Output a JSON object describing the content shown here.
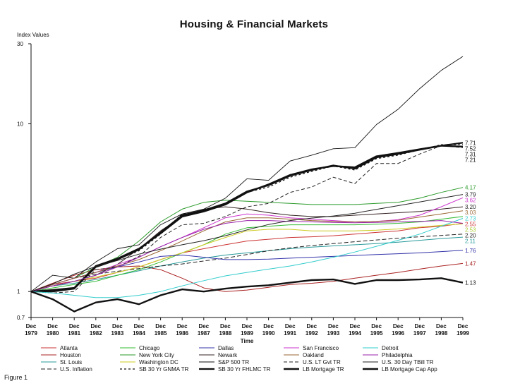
{
  "chart_data": {
    "type": "line",
    "title": "Housing & Financial Markets",
    "ylabel": "Index Values",
    "xlabel": "Time",
    "yscale": "log",
    "ylim": [
      0.7,
      30
    ],
    "yticks": [
      {
        "value": 30,
        "label": "30"
      },
      {
        "value": 10,
        "label": "10"
      },
      {
        "value": 1,
        "label": "1"
      },
      {
        "value": 0.7,
        "label": "0.7"
      }
    ],
    "xlim": [
      1979,
      1999
    ],
    "xticks": [
      {
        "year": 1979,
        "top": "Dec",
        "bottom": "1979"
      },
      {
        "year": 1980,
        "top": "Dec",
        "bottom": "1980"
      },
      {
        "year": 1981,
        "top": "Dec",
        "bottom": "1981"
      },
      {
        "year": 1982,
        "top": "Dec",
        "bottom": "1982"
      },
      {
        "year": 1983,
        "top": "Dec",
        "bottom": "1983"
      },
      {
        "year": 1984,
        "top": "Dec",
        "bottom": "1984"
      },
      {
        "year": 1985,
        "top": "Dec",
        "bottom": "1985"
      },
      {
        "year": 1986,
        "top": "Dec",
        "bottom": "1986"
      },
      {
        "year": 1987,
        "top": "Dec",
        "bottom": "1987"
      },
      {
        "year": 1988,
        "top": "Dec",
        "bottom": "1988"
      },
      {
        "year": 1989,
        "top": "Dec",
        "bottom": "1989"
      },
      {
        "year": 1990,
        "top": "Dec",
        "bottom": "1990"
      },
      {
        "year": 1991,
        "top": "Dec",
        "bottom": "1991"
      },
      {
        "year": 1992,
        "top": "Dec",
        "bottom": "1992"
      },
      {
        "year": 1993,
        "top": "Dec",
        "bottom": "1993"
      },
      {
        "year": 1994,
        "top": "Dec",
        "bottom": "1994"
      },
      {
        "year": 1995,
        "top": "Dec",
        "bottom": "1995"
      },
      {
        "year": 1996,
        "top": "Dec",
        "bottom": "1996"
      },
      {
        "year": 1997,
        "top": "Dec",
        "bottom": "1997"
      },
      {
        "year": 1998,
        "top": "Dec",
        "bottom": "1998"
      },
      {
        "year": 1999,
        "top": "Dec",
        "bottom": "1999"
      }
    ],
    "end_labels": [
      {
        "text": "7.71",
        "value": 7.71,
        "color": "#111111"
      },
      {
        "text": "7.52",
        "value": 7.52,
        "color": "#111111"
      },
      {
        "text": "7.31",
        "value": 7.31,
        "color": "#111111"
      },
      {
        "text": "7.21",
        "value": 7.21,
        "color": "#111111"
      },
      {
        "text": "4.17",
        "value": 4.17,
        "color": "#2a9a2a"
      },
      {
        "text": "3.79",
        "value": 3.79,
        "color": "#222222"
      },
      {
        "text": "3.62",
        "value": 3.62,
        "color": "#cc33cc"
      },
      {
        "text": "3.20",
        "value": 3.2,
        "color": "#222222"
      },
      {
        "text": "3.03",
        "value": 3.03,
        "color": "#996633"
      },
      {
        "text": "2.73",
        "value": 2.73,
        "color": "#33cccc"
      },
      {
        "text": "2.55",
        "value": 2.55,
        "color": "#cc3333"
      },
      {
        "text": "2.53",
        "value": 2.53,
        "color": "#aacc33"
      },
      {
        "text": "2.20",
        "value": 2.2,
        "color": "#222222"
      },
      {
        "text": "2.11",
        "value": 2.11,
        "color": "#2a9a9a"
      },
      {
        "text": "1.76",
        "value": 1.76,
        "color": "#3333aa"
      },
      {
        "text": "1.47",
        "value": 1.47,
        "color": "#aa2222"
      },
      {
        "text": "1.13",
        "value": 1.13,
        "color": "#111111"
      }
    ],
    "series": [
      {
        "name": "Atlanta",
        "color": "#cc3333",
        "width": 1,
        "dash": "",
        "values": [
          1.0,
          1.1,
          1.15,
          1.2,
          1.3,
          1.4,
          1.55,
          1.7,
          1.8,
          1.9,
          2.0,
          2.05,
          2.1,
          2.12,
          2.15,
          2.2,
          2.25,
          2.3,
          2.4,
          2.45,
          2.55
        ]
      },
      {
        "name": "Houston",
        "color": "#aa2222",
        "width": 1,
        "dash": "",
        "values": [
          1.0,
          1.12,
          1.25,
          1.35,
          1.4,
          1.42,
          1.35,
          1.2,
          1.05,
          1.0,
          1.02,
          1.06,
          1.1,
          1.12,
          1.15,
          1.2,
          1.25,
          1.3,
          1.36,
          1.42,
          1.47
        ]
      },
      {
        "name": "St. Louis",
        "color": "#2a9a9a",
        "width": 1,
        "dash": "",
        "values": [
          1.0,
          1.08,
          1.12,
          1.18,
          1.25,
          1.33,
          1.42,
          1.5,
          1.58,
          1.65,
          1.7,
          1.75,
          1.8,
          1.84,
          1.87,
          1.9,
          1.93,
          1.97,
          2.02,
          2.07,
          2.11
        ]
      },
      {
        "name": "U.S. Inflation",
        "color": "#222222",
        "width": 1,
        "dash": "6,3",
        "values": [
          1.0,
          1.1,
          1.2,
          1.27,
          1.32,
          1.37,
          1.42,
          1.46,
          1.52,
          1.58,
          1.66,
          1.75,
          1.82,
          1.88,
          1.93,
          1.98,
          2.03,
          2.08,
          2.12,
          2.16,
          2.2
        ]
      },
      {
        "name": "Chicago",
        "color": "#33bb33",
        "width": 1,
        "dash": "",
        "values": [
          1.0,
          1.05,
          1.1,
          1.15,
          1.25,
          1.35,
          1.5,
          1.7,
          1.9,
          2.2,
          2.4,
          2.45,
          2.5,
          2.5,
          2.5,
          2.5,
          2.52,
          2.55,
          2.6,
          2.7,
          2.8
        ]
      },
      {
        "name": "New York City",
        "color": "#2a9a2a",
        "width": 1,
        "dash": "",
        "values": [
          1.0,
          1.1,
          1.2,
          1.4,
          1.6,
          2.0,
          2.6,
          3.1,
          3.4,
          3.5,
          3.45,
          3.4,
          3.35,
          3.3,
          3.3,
          3.3,
          3.35,
          3.4,
          3.6,
          3.9,
          4.17
        ]
      },
      {
        "name": "Washington DC",
        "color": "#cccc22",
        "width": 1,
        "dash": "",
        "values": [
          1.0,
          1.08,
          1.15,
          1.22,
          1.3,
          1.4,
          1.55,
          1.7,
          1.9,
          2.1,
          2.3,
          2.35,
          2.35,
          2.3,
          2.3,
          2.3,
          2.32,
          2.36,
          2.42,
          2.48,
          2.53
        ]
      },
      {
        "name": "SB 30 Yr GNMA TR",
        "color": "#111111",
        "width": 1.2,
        "dash": "3,3",
        "values": [
          1.0,
          1.0,
          1.05,
          1.4,
          1.55,
          1.75,
          2.2,
          2.9,
          3.0,
          3.3,
          3.9,
          4.2,
          4.8,
          5.2,
          5.6,
          5.3,
          6.2,
          6.5,
          7.0,
          7.5,
          7.52
        ]
      },
      {
        "name": "Dallas",
        "color": "#3333aa",
        "width": 1,
        "dash": "",
        "values": [
          1.0,
          1.1,
          1.2,
          1.3,
          1.4,
          1.5,
          1.62,
          1.65,
          1.6,
          1.55,
          1.55,
          1.56,
          1.58,
          1.6,
          1.62,
          1.64,
          1.66,
          1.68,
          1.7,
          1.73,
          1.76
        ]
      },
      {
        "name": "Newark",
        "color": "#332222",
        "width": 1,
        "dash": "",
        "values": [
          1.0,
          1.08,
          1.15,
          1.25,
          1.45,
          1.8,
          2.3,
          2.8,
          3.1,
          3.2,
          3.1,
          2.95,
          2.85,
          2.8,
          2.8,
          2.85,
          2.9,
          2.95,
          3.0,
          3.1,
          3.2
        ]
      },
      {
        "name": "S&P 500 TR",
        "color": "#111111",
        "width": 0.9,
        "dash": "",
        "values": [
          1.0,
          1.25,
          1.2,
          1.5,
          1.8,
          1.9,
          2.5,
          2.9,
          3.1,
          3.6,
          4.7,
          4.6,
          6.0,
          6.5,
          7.1,
          7.2,
          9.9,
          12.2,
          16.2,
          20.8,
          25.2
        ]
      },
      {
        "name": "SB 30 Yr FHLMC TR",
        "color": "#111111",
        "width": 2.2,
        "dash": "",
        "values": [
          1.0,
          1.0,
          1.04,
          1.4,
          1.55,
          1.78,
          2.25,
          2.85,
          3.05,
          3.35,
          3.95,
          4.3,
          4.9,
          5.3,
          5.65,
          5.4,
          6.3,
          6.6,
          7.0,
          7.4,
          7.71
        ]
      },
      {
        "name": "San Francisco",
        "color": "#cc33cc",
        "width": 1,
        "dash": "",
        "values": [
          1.0,
          1.1,
          1.2,
          1.3,
          1.45,
          1.6,
          1.85,
          2.1,
          2.4,
          2.75,
          2.9,
          2.85,
          2.75,
          2.7,
          2.65,
          2.6,
          2.62,
          2.68,
          2.85,
          3.2,
          3.62
        ]
      },
      {
        "name": "Oakland",
        "color": "#996633",
        "width": 1,
        "dash": "",
        "values": [
          1.0,
          1.1,
          1.2,
          1.3,
          1.42,
          1.55,
          1.75,
          2.0,
          2.3,
          2.6,
          2.75,
          2.75,
          2.7,
          2.65,
          2.62,
          2.6,
          2.62,
          2.66,
          2.78,
          2.9,
          3.03
        ]
      },
      {
        "name": "U.S. LT Gvt TR",
        "color": "#222222",
        "width": 1,
        "dash": "5,3",
        "values": [
          1.0,
          0.98,
          1.0,
          1.35,
          1.4,
          1.62,
          2.1,
          2.5,
          2.55,
          2.8,
          3.2,
          3.35,
          3.9,
          4.2,
          4.8,
          4.4,
          5.8,
          5.8,
          6.6,
          7.4,
          7.21
        ]
      },
      {
        "name": "LB Mortgage TR",
        "color": "#111111",
        "width": 2.4,
        "dash": "",
        "values": [
          1.0,
          1.02,
          1.05,
          1.42,
          1.57,
          1.8,
          2.22,
          2.8,
          3.0,
          3.3,
          3.9,
          4.35,
          4.95,
          5.35,
          5.6,
          5.5,
          6.4,
          6.7,
          7.05,
          7.4,
          7.31
        ]
      },
      {
        "name": "Detroit",
        "color": "#33cccc",
        "width": 1,
        "dash": "",
        "values": [
          1.0,
          0.98,
          0.95,
          0.92,
          0.92,
          0.95,
          1.0,
          1.08,
          1.16,
          1.24,
          1.3,
          1.36,
          1.42,
          1.5,
          1.6,
          1.72,
          1.86,
          2.02,
          2.2,
          2.45,
          2.73
        ]
      },
      {
        "name": "Philadelphia",
        "color": "#9922aa",
        "width": 1,
        "dash": "",
        "values": [
          1.0,
          1.08,
          1.15,
          1.25,
          1.4,
          1.6,
          1.85,
          2.1,
          2.35,
          2.55,
          2.65,
          2.65,
          2.62,
          2.6,
          2.58,
          2.57,
          2.58,
          2.6,
          2.62,
          2.65,
          2.55
        ]
      },
      {
        "name": "U.S. 30 Day TBill TR",
        "color": "#222222",
        "width": 1,
        "dash": "",
        "values": [
          1.0,
          1.11,
          1.27,
          1.41,
          1.53,
          1.67,
          1.79,
          1.9,
          2.01,
          2.15,
          2.33,
          2.51,
          2.65,
          2.74,
          2.82,
          2.93,
          3.09,
          3.25,
          3.42,
          3.6,
          3.79
        ]
      },
      {
        "name": "LB Mortgage Cap App",
        "color": "#111111",
        "width": 2.4,
        "dash": "",
        "values": [
          1.0,
          0.9,
          0.76,
          0.86,
          0.9,
          0.84,
          0.95,
          1.03,
          1.0,
          1.04,
          1.07,
          1.09,
          1.13,
          1.17,
          1.18,
          1.11,
          1.17,
          1.17,
          1.18,
          1.2,
          1.13
        ]
      }
    ],
    "legend": [
      [
        "Atlanta",
        "Chicago",
        "Dallas",
        "San Francisco",
        "Detroit"
      ],
      [
        "Houston",
        "New York City",
        "Newark",
        "Oakland",
        "Philadelphia"
      ],
      [
        "St. Louis",
        "Washington DC",
        "S&P 500 TR",
        "U.S. LT Gvt TR",
        "U.S. 30 Day TBill TR"
      ],
      [
        "U.S. Inflation",
        "SB 30 Yr GNMA TR",
        "SB 30 Yr FHLMC TR",
        "LB Mortgage TR",
        "LB Mortgage Cap App"
      ]
    ]
  },
  "caption": "Figure 1"
}
